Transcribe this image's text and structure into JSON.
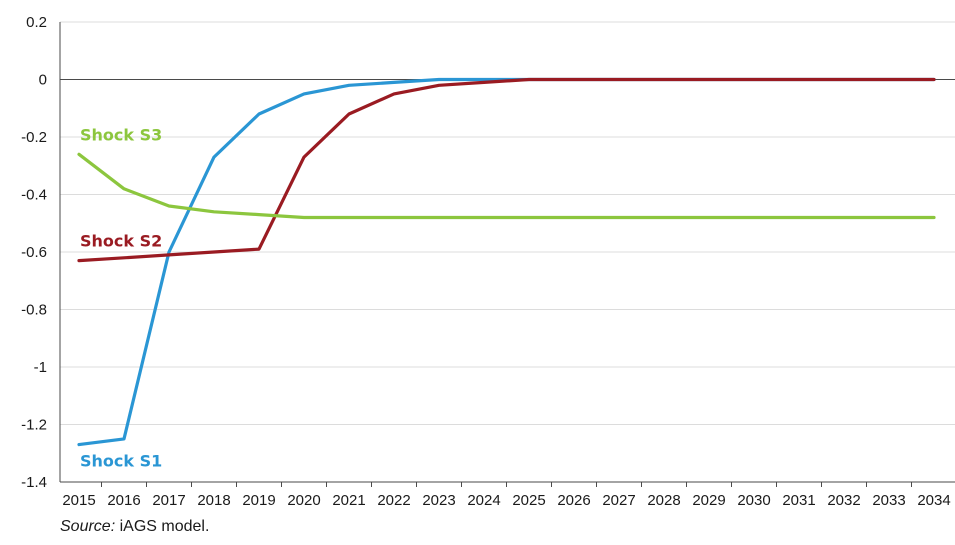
{
  "chart_data": {
    "type": "line",
    "title": "",
    "xlabel": "",
    "ylabel": "",
    "categories": [
      "2015",
      "2016",
      "2017",
      "2018",
      "2019",
      "2020",
      "2021",
      "2022",
      "2023",
      "2024",
      "2025",
      "2026",
      "2027",
      "2028",
      "2029",
      "2030",
      "2031",
      "2032",
      "2033",
      "2034"
    ],
    "ylim": [
      -1.4,
      0.2
    ],
    "yticks": [
      0.2,
      0,
      -0.2,
      -0.4,
      -0.6,
      -0.8,
      -1,
      -1.2,
      -1.4
    ],
    "ytick_labels": [
      "0.2",
      "0",
      "-0.2",
      "-0.4",
      "-0.6",
      "-0.8",
      "-1",
      "-1.2",
      "-1.4"
    ],
    "grid": "horizontal",
    "series": [
      {
        "name": "Shock S1",
        "color": "#2a96d4",
        "values": [
          -1.27,
          -1.25,
          -0.6,
          -0.27,
          -0.12,
          -0.05,
          -0.02,
          -0.01,
          0.0,
          0.0,
          0.0,
          0.0,
          0.0,
          0.0,
          0.0,
          0.0,
          0.0,
          0.0,
          0.0,
          0.0
        ]
      },
      {
        "name": "Shock S2",
        "color": "#9a1b22",
        "values": [
          -0.63,
          -0.62,
          -0.61,
          -0.6,
          -0.59,
          -0.27,
          -0.12,
          -0.05,
          -0.02,
          -0.01,
          0.0,
          0.0,
          0.0,
          0.0,
          0.0,
          0.0,
          0.0,
          0.0,
          0.0,
          0.0
        ]
      },
      {
        "name": "Shock S3",
        "color": "#8cc63e",
        "values": [
          -0.26,
          -0.38,
          -0.44,
          -0.46,
          -0.47,
          -0.48,
          -0.48,
          -0.48,
          -0.48,
          -0.48,
          -0.48,
          -0.48,
          -0.48,
          -0.48,
          -0.48,
          -0.48,
          -0.48,
          -0.48,
          -0.48,
          -0.48
        ]
      }
    ]
  },
  "source": {
    "prefix": "Source:",
    "text": " iAGS model."
  }
}
